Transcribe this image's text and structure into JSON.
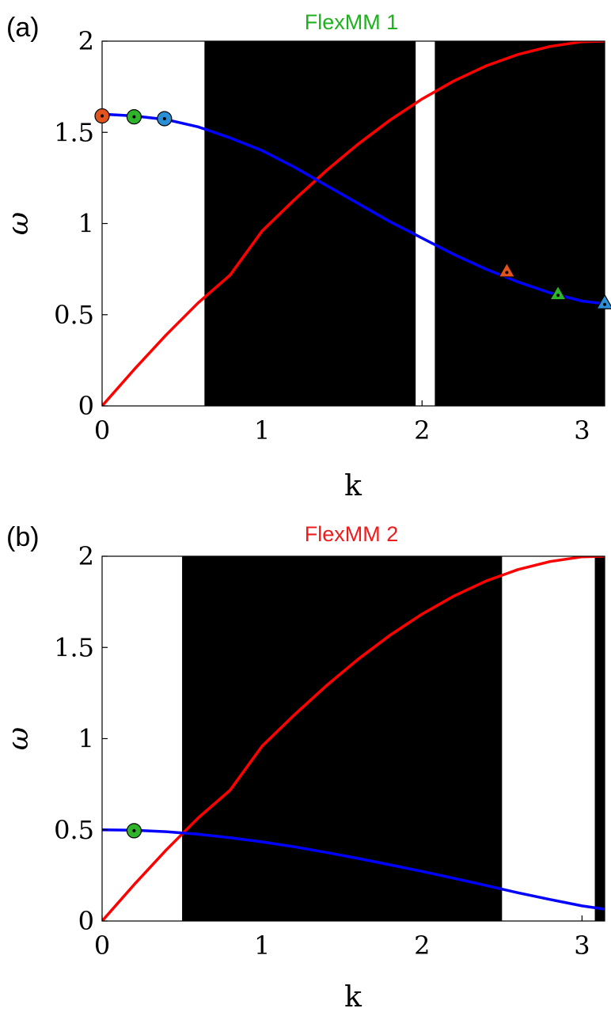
{
  "chart_data": [
    {
      "type": "line",
      "panel_label": "(a)",
      "title": "FlexMM 1",
      "title_color": "#1fb01f",
      "xlabel": "k",
      "ylabel": "ω",
      "xlim": [
        0,
        3.14159
      ],
      "ylim": [
        0,
        2
      ],
      "xticks": [
        0,
        1,
        2,
        3
      ],
      "yticks": [
        0,
        0.5,
        1,
        1.5,
        2
      ],
      "xtick_labels": [
        "0",
        "1",
        "2",
        "3"
      ],
      "ytick_labels": [
        "0",
        "0.5",
        "1",
        "1.5",
        "2"
      ],
      "bands": [
        {
          "x0": 0.64,
          "x1": 1.96,
          "color": "#000000"
        },
        {
          "x0": 2.08,
          "x1": 3.14159,
          "color": "#000000"
        }
      ],
      "series": [
        {
          "color": "#ff0000",
          "x": [
            0,
            0.2,
            0.4,
            0.6,
            0.8,
            1.0,
            1.2,
            1.4,
            1.6,
            1.8,
            2.0,
            2.2,
            2.4,
            2.6,
            2.8,
            3.0,
            3.14159
          ],
          "y": [
            0,
            0.199,
            0.389,
            0.565,
            0.717,
            0.959,
            1.129,
            1.289,
            1.435,
            1.567,
            1.683,
            1.782,
            1.864,
            1.927,
            1.971,
            1.997,
            2.0
          ]
        },
        {
          "color": "#0000ff",
          "x": [
            0,
            0.2,
            0.4,
            0.6,
            0.8,
            1.0,
            1.2,
            1.4,
            1.6,
            1.8,
            2.0,
            2.2,
            2.4,
            2.6,
            2.8,
            3.0,
            3.14159
          ],
          "y": [
            1.6,
            1.59,
            1.57,
            1.53,
            1.47,
            1.4,
            1.31,
            1.21,
            1.11,
            1.01,
            0.92,
            0.83,
            0.75,
            0.68,
            0.62,
            0.575,
            0.56
          ]
        }
      ],
      "markers": [
        {
          "shape": "circle",
          "x": 0.0,
          "y": 1.59,
          "color": "#e2541d"
        },
        {
          "shape": "circle",
          "x": 0.2,
          "y": 1.585,
          "color": "#2fb32a"
        },
        {
          "shape": "circle",
          "x": 0.39,
          "y": 1.575,
          "color": "#2a8fd4"
        },
        {
          "shape": "triangle",
          "x": 2.53,
          "y": 0.74,
          "color": "#e2541d"
        },
        {
          "shape": "triangle",
          "x": 2.85,
          "y": 0.615,
          "color": "#2fb32a"
        },
        {
          "shape": "triangle",
          "x": 3.14159,
          "y": 0.565,
          "color": "#2a8fd4"
        }
      ]
    },
    {
      "type": "line",
      "panel_label": "(b)",
      "title": "FlexMM 2",
      "title_color": "#ee1c1c",
      "xlabel": "k",
      "ylabel": "ω",
      "xlim": [
        0,
        3.14159
      ],
      "ylim": [
        0,
        2
      ],
      "xticks": [
        0,
        1,
        2,
        3
      ],
      "yticks": [
        0,
        0.5,
        1,
        1.5,
        2
      ],
      "xtick_labels": [
        "0",
        "1",
        "2",
        "3"
      ],
      "ytick_labels": [
        "0",
        "0.5",
        "1",
        "1.5",
        "2"
      ],
      "bands": [
        {
          "x0": 0.5,
          "x1": 2.5,
          "color": "#000000"
        },
        {
          "x0": 3.08,
          "x1": 3.14159,
          "color": "#000000"
        }
      ],
      "series": [
        {
          "color": "#ff0000",
          "x": [
            0,
            0.2,
            0.4,
            0.6,
            0.8,
            1.0,
            1.2,
            1.4,
            1.6,
            1.8,
            2.0,
            2.2,
            2.4,
            2.6,
            2.8,
            3.0,
            3.14159
          ],
          "y": [
            0,
            0.199,
            0.389,
            0.565,
            0.717,
            0.959,
            1.129,
            1.289,
            1.435,
            1.567,
            1.683,
            1.782,
            1.864,
            1.927,
            1.971,
            1.997,
            2.0
          ]
        },
        {
          "color": "#0000ff",
          "x": [
            0,
            0.2,
            0.4,
            0.6,
            0.8,
            1.0,
            1.2,
            1.4,
            1.6,
            1.8,
            2.0,
            2.2,
            2.4,
            2.6,
            2.8,
            3.0,
            3.14159
          ],
          "y": [
            0.5,
            0.498,
            0.49,
            0.476,
            0.457,
            0.434,
            0.407,
            0.376,
            0.343,
            0.308,
            0.272,
            0.234,
            0.195,
            0.155,
            0.118,
            0.083,
            0.065
          ]
        }
      ],
      "markers": [
        {
          "shape": "circle",
          "x": 0.2,
          "y": 0.495,
          "color": "#2fb32a"
        }
      ]
    }
  ]
}
